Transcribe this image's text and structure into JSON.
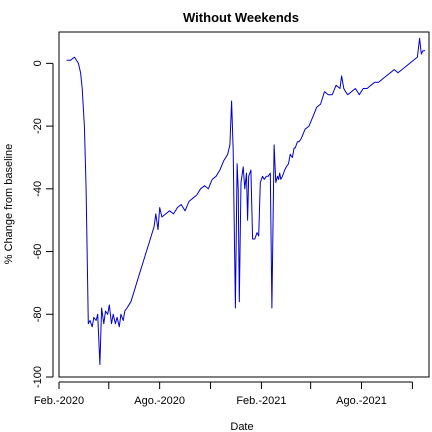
{
  "chart_data": {
    "type": "line",
    "title": "Without Weekends",
    "xlabel": "Date",
    "ylabel": "% Change from baseline",
    "xlim": [
      "2020-02-01",
      "2021-12-01"
    ],
    "ylim": [
      -100,
      10
    ],
    "x_ticks": [
      "2020-02-01",
      "2020-05-01",
      "2020-08-01",
      "2020-11-01",
      "2021-02-01",
      "2021-05-01",
      "2021-08-01",
      "2021-11-01"
    ],
    "x_tick_labels": [
      "Feb.-2020",
      "",
      "Ago.-2020",
      "",
      "Feb.-2021",
      "",
      "Ago.-2021",
      ""
    ],
    "y_ticks": [
      0,
      -20,
      -40,
      -60,
      -80,
      -100
    ],
    "y_tick_labels": [
      "0",
      "-20",
      "-40",
      "-60",
      "-80",
      "-100"
    ],
    "grid": false,
    "color": "#0000CD",
    "series": [
      {
        "x": [
          "2020-02-15",
          "2020-02-22",
          "2020-02-29",
          "2020-03-07",
          "2020-03-11",
          "2020-03-14",
          "2020-03-18",
          "2020-03-21",
          "2020-03-25",
          "2020-03-28",
          "2020-04-01",
          "2020-04-04",
          "2020-04-08",
          "2020-04-11",
          "2020-04-15",
          "2020-04-18",
          "2020-04-22",
          "2020-04-25",
          "2020-04-29",
          "2020-05-02",
          "2020-05-06",
          "2020-05-09",
          "2020-05-13",
          "2020-05-16",
          "2020-05-20",
          "2020-05-23",
          "2020-05-27",
          "2020-05-30",
          "2020-06-03",
          "2020-06-10",
          "2020-06-17",
          "2020-06-24",
          "2020-07-01",
          "2020-07-08",
          "2020-07-15",
          "2020-07-22",
          "2020-07-25",
          "2020-07-29",
          "2020-08-01",
          "2020-08-05",
          "2020-08-12",
          "2020-08-19",
          "2020-08-26",
          "2020-09-02",
          "2020-09-09",
          "2020-09-16",
          "2020-09-23",
          "2020-09-30",
          "2020-10-07",
          "2020-10-14",
          "2020-10-21",
          "2020-10-28",
          "2020-11-04",
          "2020-11-11",
          "2020-11-18",
          "2020-11-25",
          "2020-12-02",
          "2020-12-06",
          "2020-12-09",
          "2020-12-12",
          "2020-12-16",
          "2020-12-19",
          "2020-12-21",
          "2020-12-23",
          "2020-12-26",
          "2020-12-30",
          "2021-01-02",
          "2021-01-05",
          "2021-01-07",
          "2021-01-09",
          "2021-01-13",
          "2021-01-16",
          "2021-01-20",
          "2021-01-24",
          "2021-01-27",
          "2021-01-30",
          "2021-02-03",
          "2021-02-06",
          "2021-02-10",
          "2021-02-13",
          "2021-02-17",
          "2021-02-20",
          "2021-02-24",
          "2021-02-27",
          "2021-03-02",
          "2021-03-04",
          "2021-03-06",
          "2021-03-08",
          "2021-03-11",
          "2021-03-15",
          "2021-03-18",
          "2021-03-22",
          "2021-03-25",
          "2021-03-29",
          "2021-04-01",
          "2021-04-03",
          "2021-04-07",
          "2021-04-10",
          "2021-04-14",
          "2021-04-21",
          "2021-04-28",
          "2021-05-05",
          "2021-05-12",
          "2021-05-19",
          "2021-05-26",
          "2021-06-02",
          "2021-06-09",
          "2021-06-16",
          "2021-06-23",
          "2021-06-26",
          "2021-06-30",
          "2021-07-03",
          "2021-07-07",
          "2021-07-14",
          "2021-07-21",
          "2021-07-28",
          "2021-08-04",
          "2021-08-11",
          "2021-08-18",
          "2021-08-25",
          "2021-09-01",
          "2021-09-08",
          "2021-09-15",
          "2021-09-22",
          "2021-09-29",
          "2021-10-06",
          "2021-10-13",
          "2021-10-20",
          "2021-10-27",
          "2021-11-03",
          "2021-11-10",
          "2021-11-14",
          "2021-11-17",
          "2021-11-20",
          "2021-11-24"
        ],
        "y": [
          1,
          1,
          2,
          0,
          -3,
          -8,
          -20,
          -40,
          -83,
          -82,
          -84,
          -81,
          -82,
          -80,
          -96,
          -78,
          -83,
          -79,
          -80,
          -77,
          -83,
          -80,
          -83,
          -81,
          -84,
          -80,
          -82,
          -79,
          -78,
          -76,
          -72,
          -68,
          -64,
          -60,
          -56,
          -52,
          -48,
          -53,
          -46,
          -49,
          -48,
          -47,
          -48,
          -46,
          -45,
          -47,
          -44,
          -43,
          -42,
          -40,
          -39,
          -40,
          -37,
          -36,
          -34,
          -31,
          -29,
          -26,
          -12,
          -28,
          -78,
          -32,
          -40,
          -76,
          -38,
          -33,
          -40,
          -35,
          -50,
          -36,
          -34,
          -56,
          -56,
          -54,
          -55,
          -38,
          -36,
          -37,
          -36,
          -36,
          -35,
          -78,
          -26,
          -38,
          -36,
          -37,
          -35,
          -37,
          -36,
          -34,
          -33,
          -32,
          -29,
          -30,
          -27,
          -27,
          -25,
          -25,
          -24,
          -21,
          -20,
          -17,
          -14,
          -13,
          -9,
          -10,
          -10,
          -7,
          -8,
          -4,
          -8,
          -9,
          -10,
          -9,
          -8,
          -10,
          -8,
          -8,
          -7,
          -6,
          -6,
          -5,
          -4,
          -3,
          -2,
          -3,
          -2,
          -1,
          0,
          1,
          2,
          8,
          3,
          4,
          4
        ]
      }
    ]
  }
}
